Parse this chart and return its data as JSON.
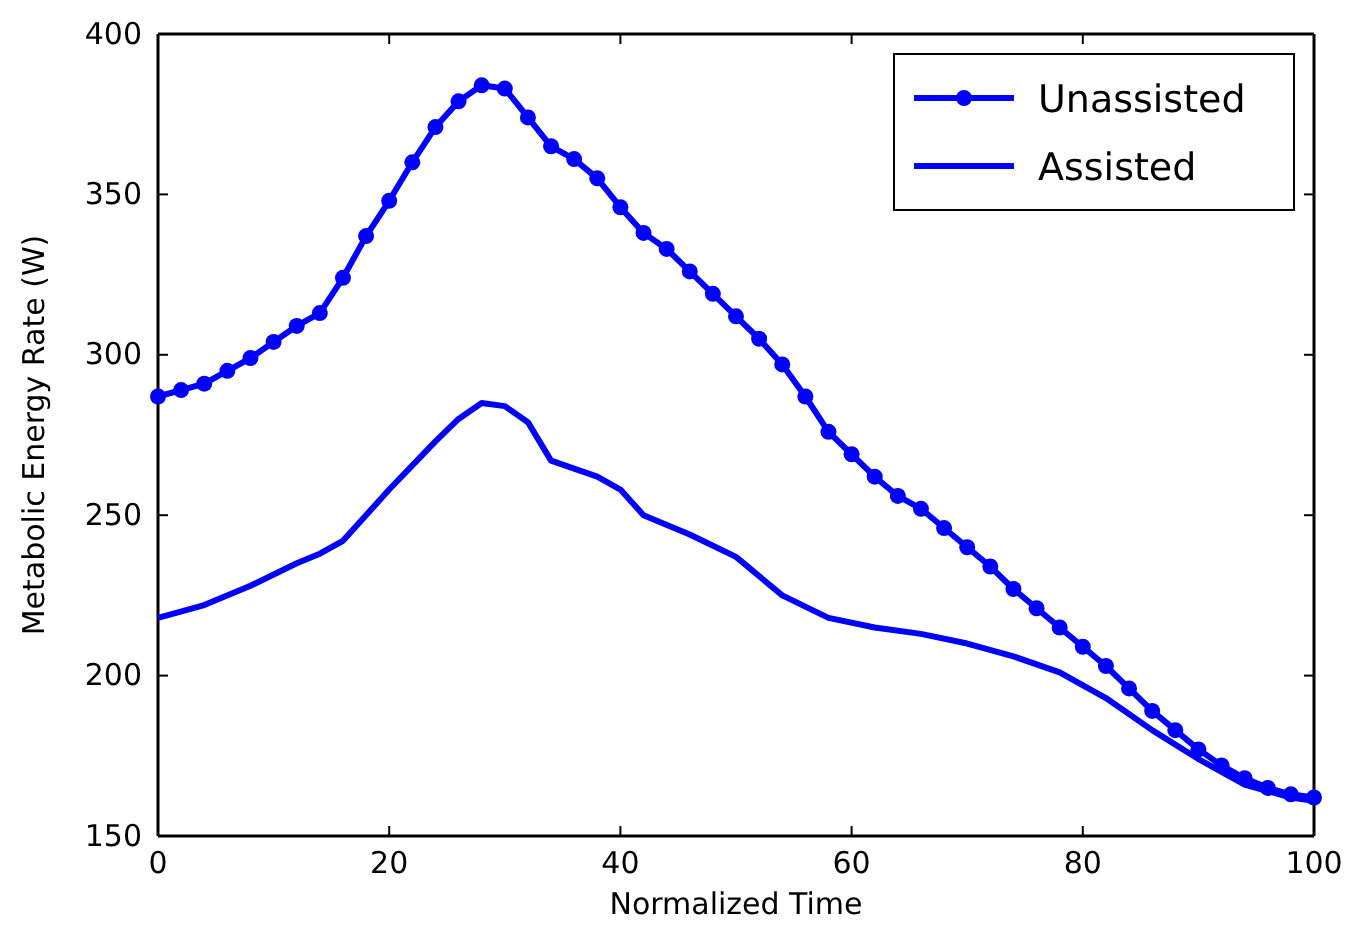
{
  "chart_data": {
    "type": "line",
    "xlabel": "Normalized Time",
    "ylabel": "Metabolic Energy Rate (W)",
    "xlim": [
      0,
      100
    ],
    "ylim": [
      150,
      400
    ],
    "xticks": [
      0,
      20,
      40,
      60,
      80,
      100
    ],
    "yticks": [
      150,
      200,
      250,
      300,
      350,
      400
    ],
    "grid": false,
    "legend": "top right",
    "series": [
      {
        "name": "Unassisted",
        "color": "#0000ff",
        "marker": "circle",
        "x": [
          0,
          2,
          4,
          6,
          8,
          10,
          12,
          14,
          16,
          18,
          20,
          22,
          24,
          26,
          28,
          30,
          32,
          34,
          36,
          38,
          40,
          42,
          44,
          46,
          48,
          50,
          52,
          54,
          56,
          58,
          60,
          62,
          64,
          66,
          68,
          70,
          72,
          74,
          76,
          78,
          80,
          82,
          84,
          86,
          88,
          90,
          92,
          94,
          96,
          98,
          100
        ],
        "values": [
          287,
          289,
          291,
          295,
          299,
          304,
          309,
          313,
          324,
          337,
          348,
          360,
          371,
          379,
          384,
          383,
          374,
          365,
          361,
          355,
          346,
          338,
          333,
          326,
          319,
          312,
          305,
          297,
          287,
          276,
          269,
          262,
          256,
          252,
          246,
          240,
          234,
          227,
          221,
          215,
          209,
          203,
          196,
          189,
          183,
          177,
          172,
          168,
          165,
          163,
          162
        ]
      },
      {
        "name": "Assisted",
        "color": "#0000ff",
        "marker": "none",
        "x": [
          0,
          4,
          8,
          12,
          14,
          16,
          20,
          24,
          26,
          28,
          30,
          32,
          34,
          38,
          40,
          42,
          46,
          50,
          54,
          58,
          62,
          66,
          70,
          74,
          78,
          82,
          86,
          90,
          94,
          98,
          100
        ],
        "values": [
          218,
          222,
          228,
          235,
          238,
          242,
          258,
          273,
          280,
          285,
          284,
          279,
          267,
          262,
          258,
          250,
          244,
          237,
          225,
          218,
          215,
          213,
          210,
          206,
          201,
          193,
          183,
          174,
          166,
          162,
          161
        ]
      }
    ]
  }
}
